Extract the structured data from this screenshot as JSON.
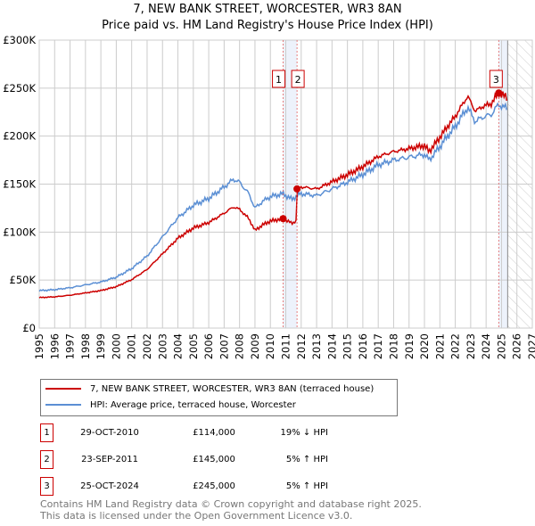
{
  "title_line1": "7, NEW BANK STREET, WORCESTER, WR3 8AN",
  "title_line2": "Price paid vs. HM Land Registry's House Price Index (HPI)",
  "chart_data": {
    "type": "line",
    "ylim": [
      0,
      300000
    ],
    "xlim": [
      1995,
      2027
    ],
    "yticks": [
      {
        "v": 0,
        "label": "£0"
      },
      {
        "v": 50000,
        "label": "£50K"
      },
      {
        "v": 100000,
        "label": "£100K"
      },
      {
        "v": 150000,
        "label": "£150K"
      },
      {
        "v": 200000,
        "label": "£200K"
      },
      {
        "v": 250000,
        "label": "£250K"
      },
      {
        "v": 300000,
        "label": "£300K"
      }
    ],
    "xticks": [
      "1995",
      "1996",
      "1997",
      "1998",
      "1999",
      "2000",
      "2001",
      "2002",
      "2003",
      "2004",
      "2005",
      "2006",
      "2007",
      "2008",
      "2009",
      "2010",
      "2011",
      "2012",
      "2013",
      "2014",
      "2015",
      "2016",
      "2017",
      "2018",
      "2019",
      "2020",
      "2021",
      "2022",
      "2023",
      "2024",
      "2025",
      "2026",
      "2027"
    ],
    "hpi_series": {
      "name": "HPI: Average price, terraced house, Worcester",
      "color": "#5b8fd4",
      "x": [
        1995,
        1996,
        1997,
        1998,
        1999,
        2000,
        2001,
        2002,
        2003,
        2004,
        2005,
        2006,
        2007,
        2007.6,
        2008,
        2008.6,
        2009,
        2009.5,
        2010,
        2010.83,
        2011.4,
        2011.73,
        2012,
        2013,
        2014,
        2015,
        2016,
        2017,
        2018,
        2019,
        2020,
        2020.3,
        2020.8,
        2021.5,
        2022,
        2022.8,
        2023.3,
        2023.8,
        2024.3,
        2024.82,
        2025.4
      ],
      "y": [
        39000,
        40000,
        42000,
        45000,
        48000,
        53000,
        62000,
        75000,
        95000,
        115000,
        128000,
        135000,
        147000,
        155000,
        152000,
        140000,
        125000,
        132000,
        137000,
        140000,
        134000,
        138000,
        140000,
        138000,
        145000,
        152000,
        160000,
        170000,
        175000,
        178000,
        181000,
        175000,
        185000,
        200000,
        210000,
        230000,
        215000,
        220000,
        222000,
        233000,
        228000
      ]
    },
    "property_series": {
      "name": "7, NEW BANK STREET, WORCESTER, WR3 8AN (terraced house)",
      "color": "#cc0000"
    },
    "sales": [
      {
        "id": "1",
        "x": 2010.83,
        "price": 114000,
        "date": "29-OCT-2010",
        "price_label": "£114,000",
        "hpi_label": "19% ↓ HPI"
      },
      {
        "id": "2",
        "x": 2011.73,
        "price": 145000,
        "date": "23-SEP-2011",
        "price_label": "£145,000",
        "hpi_label": "5% ↑ HPI"
      },
      {
        "id": "3",
        "x": 2024.82,
        "price": 245000,
        "date": "25-OCT-2024",
        "price_label": "£245,000",
        "hpi_label": "5% ↑ HPI"
      }
    ],
    "data_end": 2025.4
  },
  "footer_line1": "Contains HM Land Registry data © Crown copyright and database right 2025.",
  "footer_line2": "This data is licensed under the Open Government Licence v3.0."
}
